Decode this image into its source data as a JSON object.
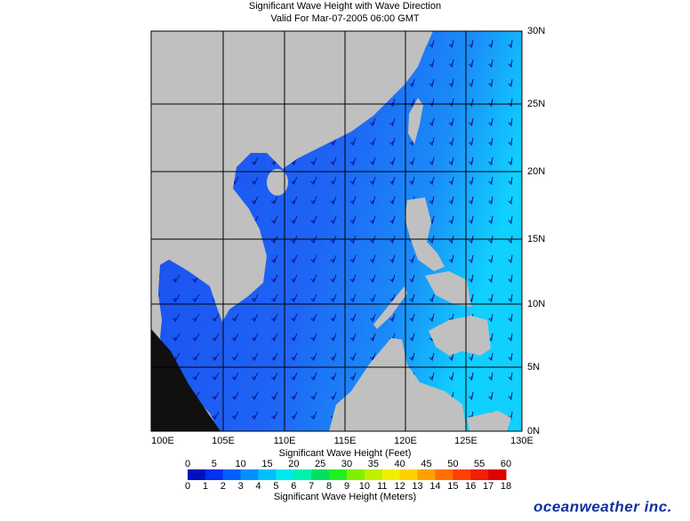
{
  "header": {
    "title": "Significant Wave Height with Wave Direction",
    "subtitle": "Valid For Mar-07-2005 06:00 GMT"
  },
  "map": {
    "longitude_labels": [
      "100E",
      "105E",
      "110E",
      "115E",
      "120E",
      "125E",
      "130E"
    ],
    "latitude_labels": [
      "30N",
      "25N",
      "20N",
      "15N",
      "10N",
      "5N",
      "0N"
    ]
  },
  "legend": {
    "feet_labels": [
      0,
      5,
      10,
      15,
      20,
      25,
      30,
      35,
      40,
      45,
      50,
      55,
      60
    ],
    "feet_title": "Significant Wave Height (Feet)",
    "meters_labels": [
      0,
      1,
      2,
      3,
      4,
      5,
      6,
      7,
      8,
      9,
      10,
      11,
      12,
      13,
      14,
      15,
      16,
      17,
      18
    ],
    "meters_title": "Significant Wave Height (Meters)"
  },
  "logo": "oceanweather inc."
}
